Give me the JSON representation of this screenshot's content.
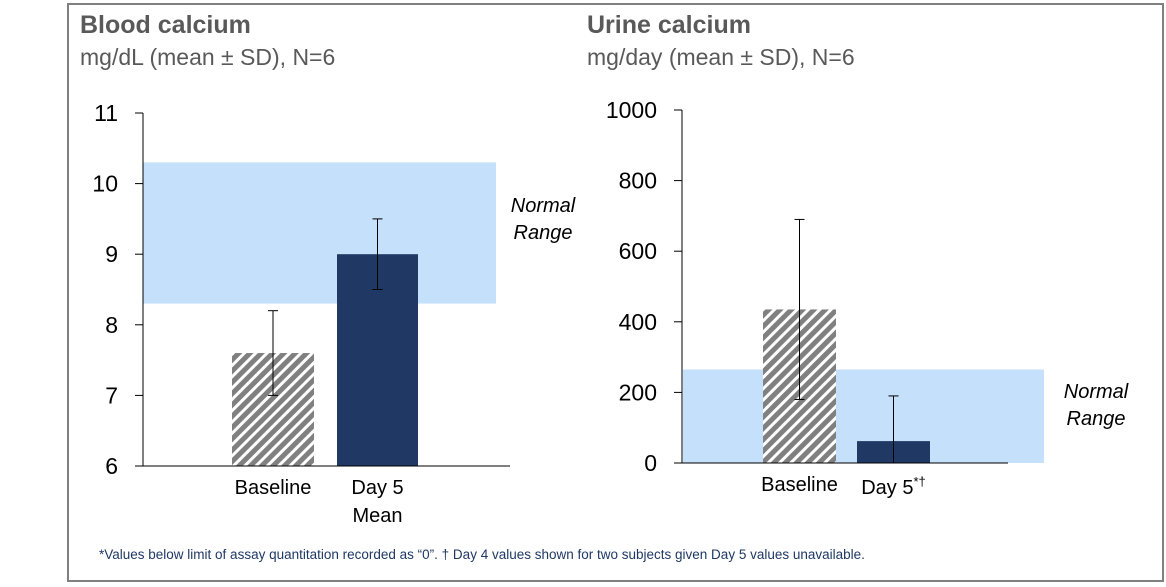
{
  "chart_data": [
    {
      "type": "bar",
      "title": "Blood calcium",
      "subtitle": "mg/dL (mean ± SD), N=6",
      "categories": [
        "Baseline",
        "Day 5\nMean"
      ],
      "values": [
        7.6,
        9.0
      ],
      "error_low": [
        7.0,
        8.5
      ],
      "error_high": [
        8.2,
        9.5
      ],
      "ylim": [
        6,
        11
      ],
      "yticks": [
        "6",
        "7",
        "8",
        "9",
        "10",
        "11"
      ],
      "normal_range": [
        8.3,
        10.3
      ],
      "normal_range_label": "Normal\nRange"
    },
    {
      "type": "bar",
      "title": "Urine calcium",
      "subtitle": "mg/day (mean ± SD), N=6",
      "categories": [
        "Baseline",
        "Day 5*†"
      ],
      "values": [
        435,
        62
      ],
      "error_low": [
        180,
        0
      ],
      "error_high": [
        690,
        190
      ],
      "ylim": [
        0,
        1000
      ],
      "yticks": [
        "0",
        "200",
        "400",
        "600",
        "800",
        "1000"
      ],
      "normal_range": [
        0,
        265
      ],
      "normal_range_label": "Normal\nRange"
    }
  ],
  "footnote": "*Values below limit of assay quantitation recorded as “0”. † Day 4 values shown for two subjects given Day 5 values unavailable.",
  "colors": {
    "band": "#c5e0fb",
    "day5": "#1f3864",
    "hatch": "#808080"
  }
}
